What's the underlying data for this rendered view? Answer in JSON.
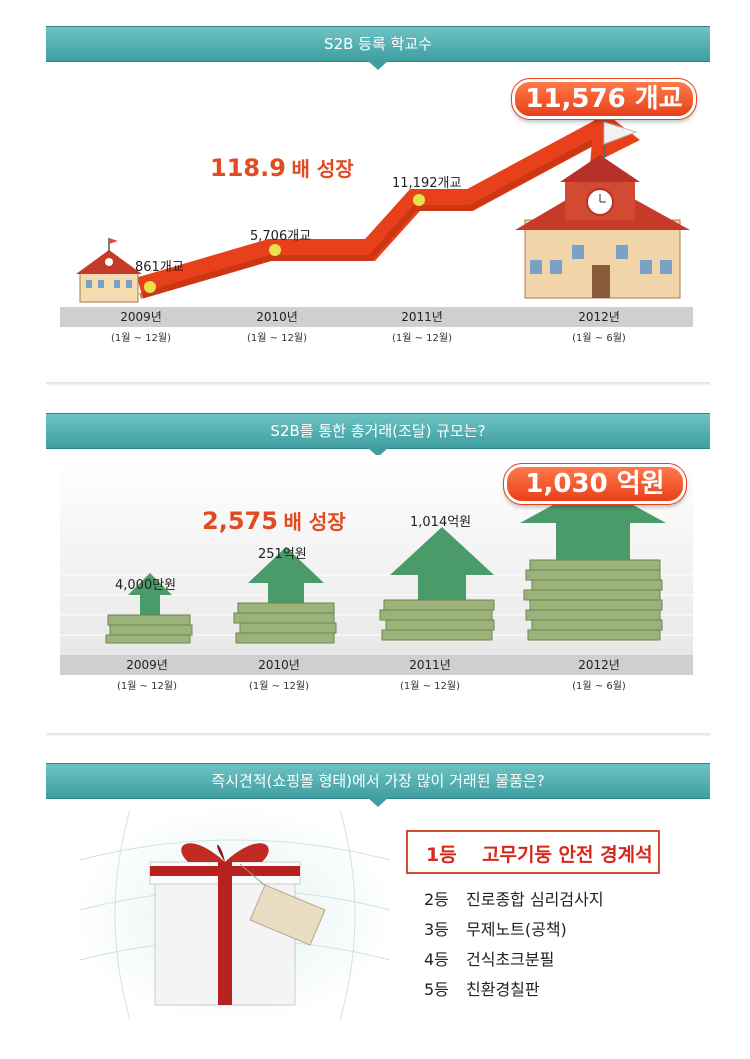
{
  "section1": {
    "title": "S2B 등록 학교수",
    "growth_number": "118.9",
    "growth_suffix": "배 성장",
    "badge": "11,576 개교",
    "labels": [
      "861개교",
      "5,706개교",
      "11,192개교"
    ]
  },
  "section2": {
    "title": "S2B를 통한 총거래(조달) 규모는?",
    "growth_number": "2,575",
    "growth_suffix": "배 성장",
    "badge": "1,030 억원",
    "labels": [
      "4,000만원",
      "251억원",
      "1,014억원"
    ]
  },
  "years": [
    {
      "year": "2009년",
      "range": "(1월 ~ 12월)"
    },
    {
      "year": "2010년",
      "range": "(1월 ~ 12월)"
    },
    {
      "year": "2011년",
      "range": "(1월 ~ 12월)"
    },
    {
      "year": "2012년",
      "range": "(1월 ~ 6월)"
    }
  ],
  "section3": {
    "title": "즉시견적(쇼핑몰 형태)에서 가장 많이 거래된 물품은?",
    "first": {
      "rank": "1등",
      "item": "고무기둥 안전 경계석"
    },
    "others": [
      {
        "rank": "2등",
        "item": "진로종합 심리검사지"
      },
      {
        "rank": "3등",
        "item": "무제노트(공책)"
      },
      {
        "rank": "4등",
        "item": "건식초크분필"
      },
      {
        "rank": "5등",
        "item": "친환경칠판"
      }
    ]
  },
  "colors": {
    "teal": "#3f9ea1",
    "accent": "#e24b1f",
    "arrow_green": "#4a9a6a",
    "gift_ribbon": "#b8221e"
  }
}
